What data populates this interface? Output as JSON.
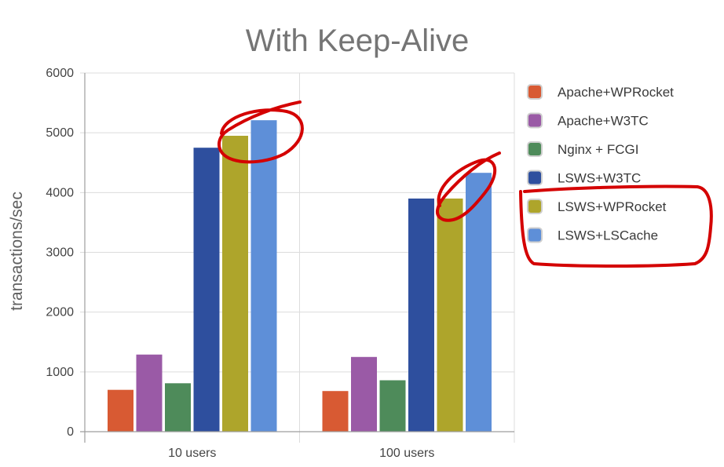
{
  "chart_data": {
    "type": "bar",
    "title": "With Keep-Alive",
    "xlabel": "",
    "ylabel": "transactions/sec",
    "ylim": [
      0,
      6000
    ],
    "yticks": [
      0,
      1000,
      2000,
      3000,
      4000,
      5000,
      6000
    ],
    "grid": true,
    "legend_position": "right",
    "categories": [
      "10 users",
      "100 users"
    ],
    "series": [
      {
        "name": "Apache+WPRocket",
        "color": "#d85a33",
        "values": [
          700,
          680
        ]
      },
      {
        "name": "Apache+W3TC",
        "color": "#9a5aa6",
        "values": [
          1290,
          1250
        ]
      },
      {
        "name": "Nginx + FCGI",
        "color": "#4e8b5a",
        "values": [
          810,
          860
        ]
      },
      {
        "name": "LSWS+W3TC",
        "color": "#2e4f9e",
        "values": [
          4750,
          3900
        ]
      },
      {
        "name": "LSWS+WPRocket",
        "color": "#aea52b",
        "values": [
          4950,
          3900
        ]
      },
      {
        "name": "LSWS+LSCache",
        "color": "#5e8fd8",
        "values": [
          5210,
          4330
        ]
      }
    ]
  }
}
